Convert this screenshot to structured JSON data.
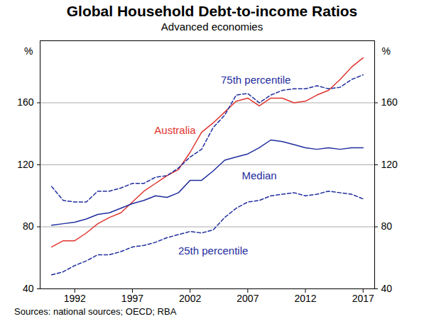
{
  "chart_data": {
    "type": "line",
    "title": "Global Household Debt-to-income Ratios",
    "subtitle": "Advanced economies",
    "ylabel": "%",
    "caption": "Sources:  national sources; OECD; RBA",
    "x": [
      1990,
      1991,
      1992,
      1993,
      1994,
      1995,
      1996,
      1997,
      1998,
      1999,
      2000,
      2001,
      2002,
      2003,
      2004,
      2005,
      2006,
      2007,
      2008,
      2009,
      2010,
      2011,
      2012,
      2013,
      2014,
      2015,
      2016,
      2017
    ],
    "series": [
      {
        "name": "Australia",
        "color": "#e0352f",
        "line_style": "solid",
        "values": [
          67,
          71,
          71,
          76,
          82,
          86,
          89,
          96,
          103,
          108,
          113,
          117,
          128,
          141,
          147,
          154,
          161,
          163,
          158,
          163,
          163,
          160,
          161,
          165,
          168,
          175,
          183,
          189
        ]
      },
      {
        "name": "Median",
        "color": "#1f2d9e",
        "line_style": "solid",
        "values": [
          81,
          82,
          83,
          85,
          88,
          89,
          92,
          95,
          97,
          100,
          99,
          102,
          110,
          110,
          116,
          123,
          125,
          127,
          131,
          136,
          135,
          133,
          131,
          130,
          131,
          130,
          131,
          131
        ]
      },
      {
        "name": "75th percentile",
        "color": "#1f2d9e",
        "line_style": "dashed",
        "values": [
          106,
          97,
          96,
          96,
          103,
          103,
          105,
          108,
          108,
          112,
          113,
          118,
          125,
          130,
          144,
          152,
          165,
          166,
          160,
          165,
          168,
          169,
          169,
          171,
          169,
          170,
          175,
          178
        ]
      },
      {
        "name": "25th percentile",
        "color": "#1f2d9e",
        "line_style": "dashed",
        "values": [
          49,
          51,
          55,
          58,
          62,
          62,
          64,
          67,
          68,
          70,
          73,
          75,
          77,
          76,
          78,
          86,
          92,
          96,
          97,
          100,
          101,
          102,
          100,
          101,
          103,
          102,
          101,
          98
        ]
      }
    ],
    "annotations": [
      {
        "text": "Australia",
        "x": 2000.7,
        "y": 142,
        "color": "#e0352f"
      },
      {
        "text": "75th percentile",
        "x": 2007.7,
        "y": 174.5,
        "color": "#1f2d9e"
      },
      {
        "text": "Median",
        "x": 2008,
        "y": 113,
        "color": "#1f2d9e"
      },
      {
        "text": "25th percentile",
        "x": 2004,
        "y": 64.5,
        "color": "#1f2d9e"
      }
    ],
    "xlim": [
      1989,
      2018
    ],
    "xticks": [
      1992,
      1997,
      2002,
      2007,
      2012,
      2017
    ],
    "ylim": [
      40,
      200
    ],
    "yticks": [
      40,
      80,
      120,
      160
    ],
    "grid": true
  }
}
